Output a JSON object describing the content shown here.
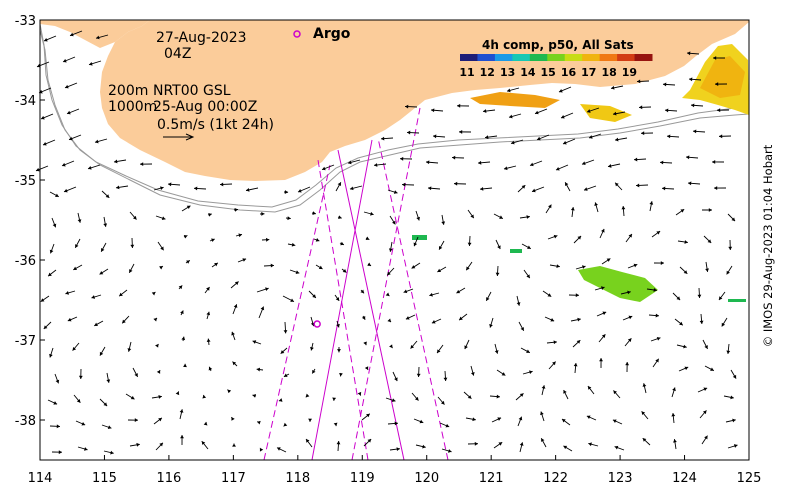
{
  "map": {
    "date": "27-Aug-2023",
    "hour": "04Z",
    "contour_labels": [
      "200m",
      "1000m"
    ],
    "current_source": "NRT00 GSL",
    "current_time": "25-Aug 00:00Z",
    "scale_label": "0.5m/s (1kt 24h)",
    "argo_label": "Argo",
    "credit": "© IMOS 29-Aug-2023 01:04 Hobart",
    "lon_min": 114,
    "lon_max": 125,
    "lat_min": -38.5,
    "lat_max": -33
  },
  "colorbar": {
    "title": "4h comp, p50, All Sats",
    "ticks": [
      "11",
      "12",
      "13",
      "14",
      "15",
      "16",
      "17",
      "18",
      "19"
    ],
    "colors": [
      "#1e1e78",
      "#2050d0",
      "#1c9ae6",
      "#18c8b4",
      "#1eb850",
      "#78d21e",
      "#c8dc14",
      "#f0b410",
      "#f07814",
      "#d23c14",
      "#961410"
    ]
  },
  "axes": {
    "x_ticks": [
      "114",
      "115",
      "116",
      "117",
      "118",
      "119",
      "120",
      "121",
      "122",
      "123",
      "124",
      "125"
    ],
    "y_ticks": [
      "-33",
      "-34",
      "-35",
      "-36",
      "-37",
      "-38"
    ]
  },
  "colors": {
    "land": "#fbcc9a",
    "track": "#cc00cc",
    "contour": "#999999"
  },
  "argo": {
    "lon": 118.3,
    "lat": -36.8
  }
}
